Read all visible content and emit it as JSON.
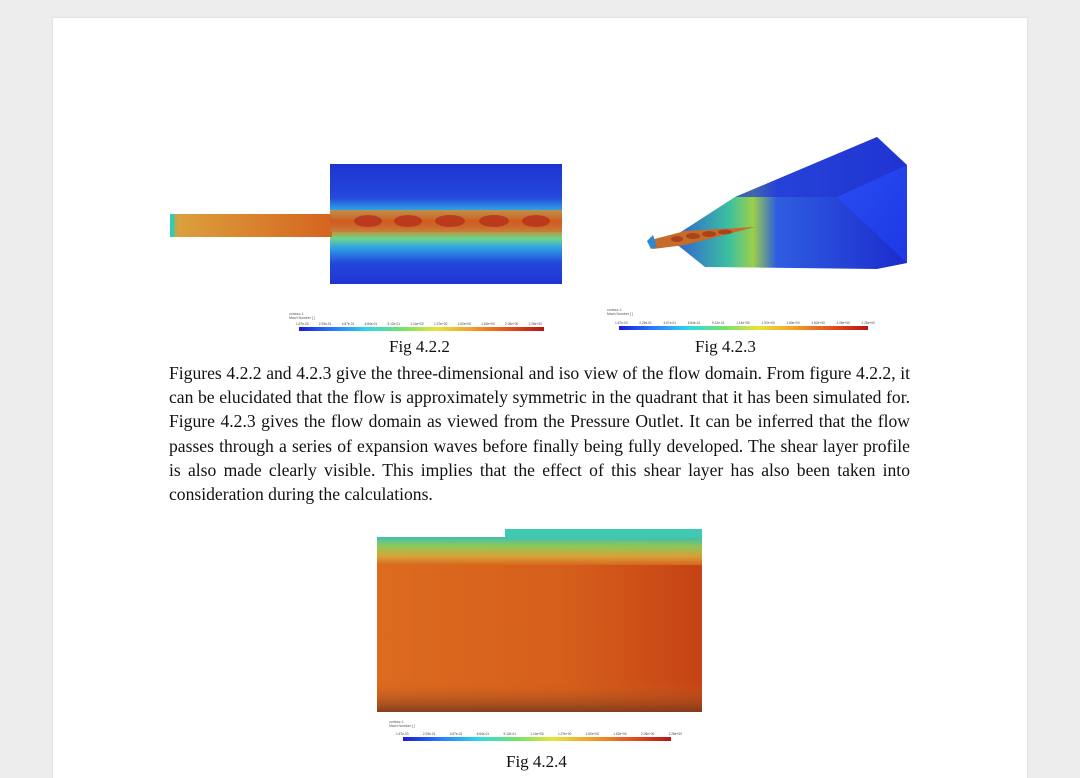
{
  "figures": {
    "fig_4_2_2": {
      "caption": "Fig 4.2.2"
    },
    "fig_4_2_3": {
      "caption": "Fig 4.2.3"
    },
    "fig_4_2_4": {
      "caption": "Fig 4.2.4"
    }
  },
  "colorbars": {
    "fig_4_2_2": {
      "title_line1": "contour-1",
      "title_line2": "Mach Number [ ]",
      "ticks": [
        "1.67e-03",
        "2.29e-01",
        "4.57e-01",
        "6.84e-01",
        "9.12e-01",
        "1.14e+00",
        "1.37e+00",
        "1.60e+00",
        "1.82e+00",
        "2.05e+00",
        "2.28e+00"
      ]
    },
    "fig_4_2_3": {
      "title_line1": "contour-1",
      "title_line2": "Mach Number [ ]",
      "ticks": [
        "1.67e-03",
        "2.29e-01",
        "4.57e-01",
        "6.84e-01",
        "9.12e-01",
        "1.14e+00",
        "1.37e+00",
        "1.60e+00",
        "1.82e+00",
        "2.05e+00",
        "2.28e+00"
      ]
    },
    "fig_4_2_4": {
      "title_line1": "contour-1",
      "title_line2": "Mach Number [ ]",
      "ticks": [
        "1.67e-03",
        "2.29e-01",
        "4.57e-01",
        "6.84e-01",
        "9.12e-01",
        "1.14e+00",
        "1.37e+00",
        "1.60e+00",
        "1.82e+00",
        "2.05e+00",
        "2.28e+00"
      ]
    }
  },
  "paragraph": "Figures 4.2.2 and 4.2.3 give the three-dimensional and iso view of the flow domain. From figure 4.2.2, it can be elucidated that the flow is approximately symmetric in the quadrant that it has been simulated for. Figure 4.2.3 gives the flow domain as viewed from the Pressure Outlet. It can be inferred that the flow passes through a series of expansion waves before finally being fully developed. The shear layer profile is also made clearly visible. This implies that the effect of this shear layer has also been taken into consideration during the calculations.",
  "colors": {
    "deep_blue": "#1a2fd0",
    "jet_orange": "#d9621e",
    "jet_red": "#b72a12",
    "teal": "#2ec9b6",
    "green": "#7ad85a",
    "page_bg": "#ffffff"
  }
}
